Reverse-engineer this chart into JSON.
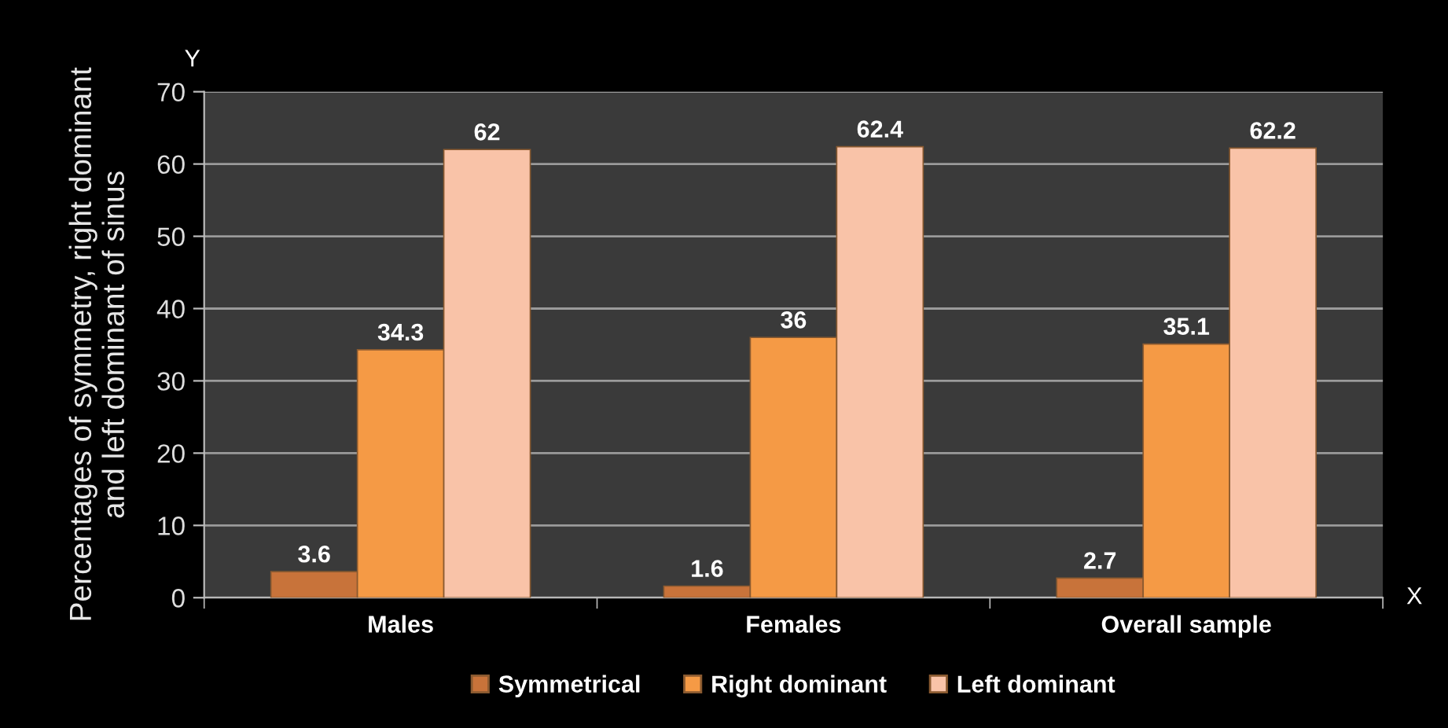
{
  "chart_data": {
    "type": "bar",
    "ylabel": "Percentages of symmetry, right dominant\nand left dominant of sinus",
    "categories": [
      "Males",
      "Females",
      "Overall sample"
    ],
    "series": [
      {
        "name": "Symmetrical",
        "color": "#c8733a",
        "values": [
          3.6,
          1.6,
          2.7
        ]
      },
      {
        "name": "Right dominant",
        "color": "#f59a45",
        "values": [
          34.3,
          36,
          35.1
        ]
      },
      {
        "name": "Left dominant",
        "color": "#f9c3a8",
        "values": [
          62,
          62.4,
          62.2
        ]
      }
    ],
    "ylim": [
      0,
      70
    ],
    "yticks": [
      0,
      10,
      20,
      30,
      40,
      50,
      60,
      70
    ],
    "grid": "y",
    "legend": "bottom",
    "data_labels": true,
    "annotations": [
      "Y",
      "X"
    ]
  }
}
